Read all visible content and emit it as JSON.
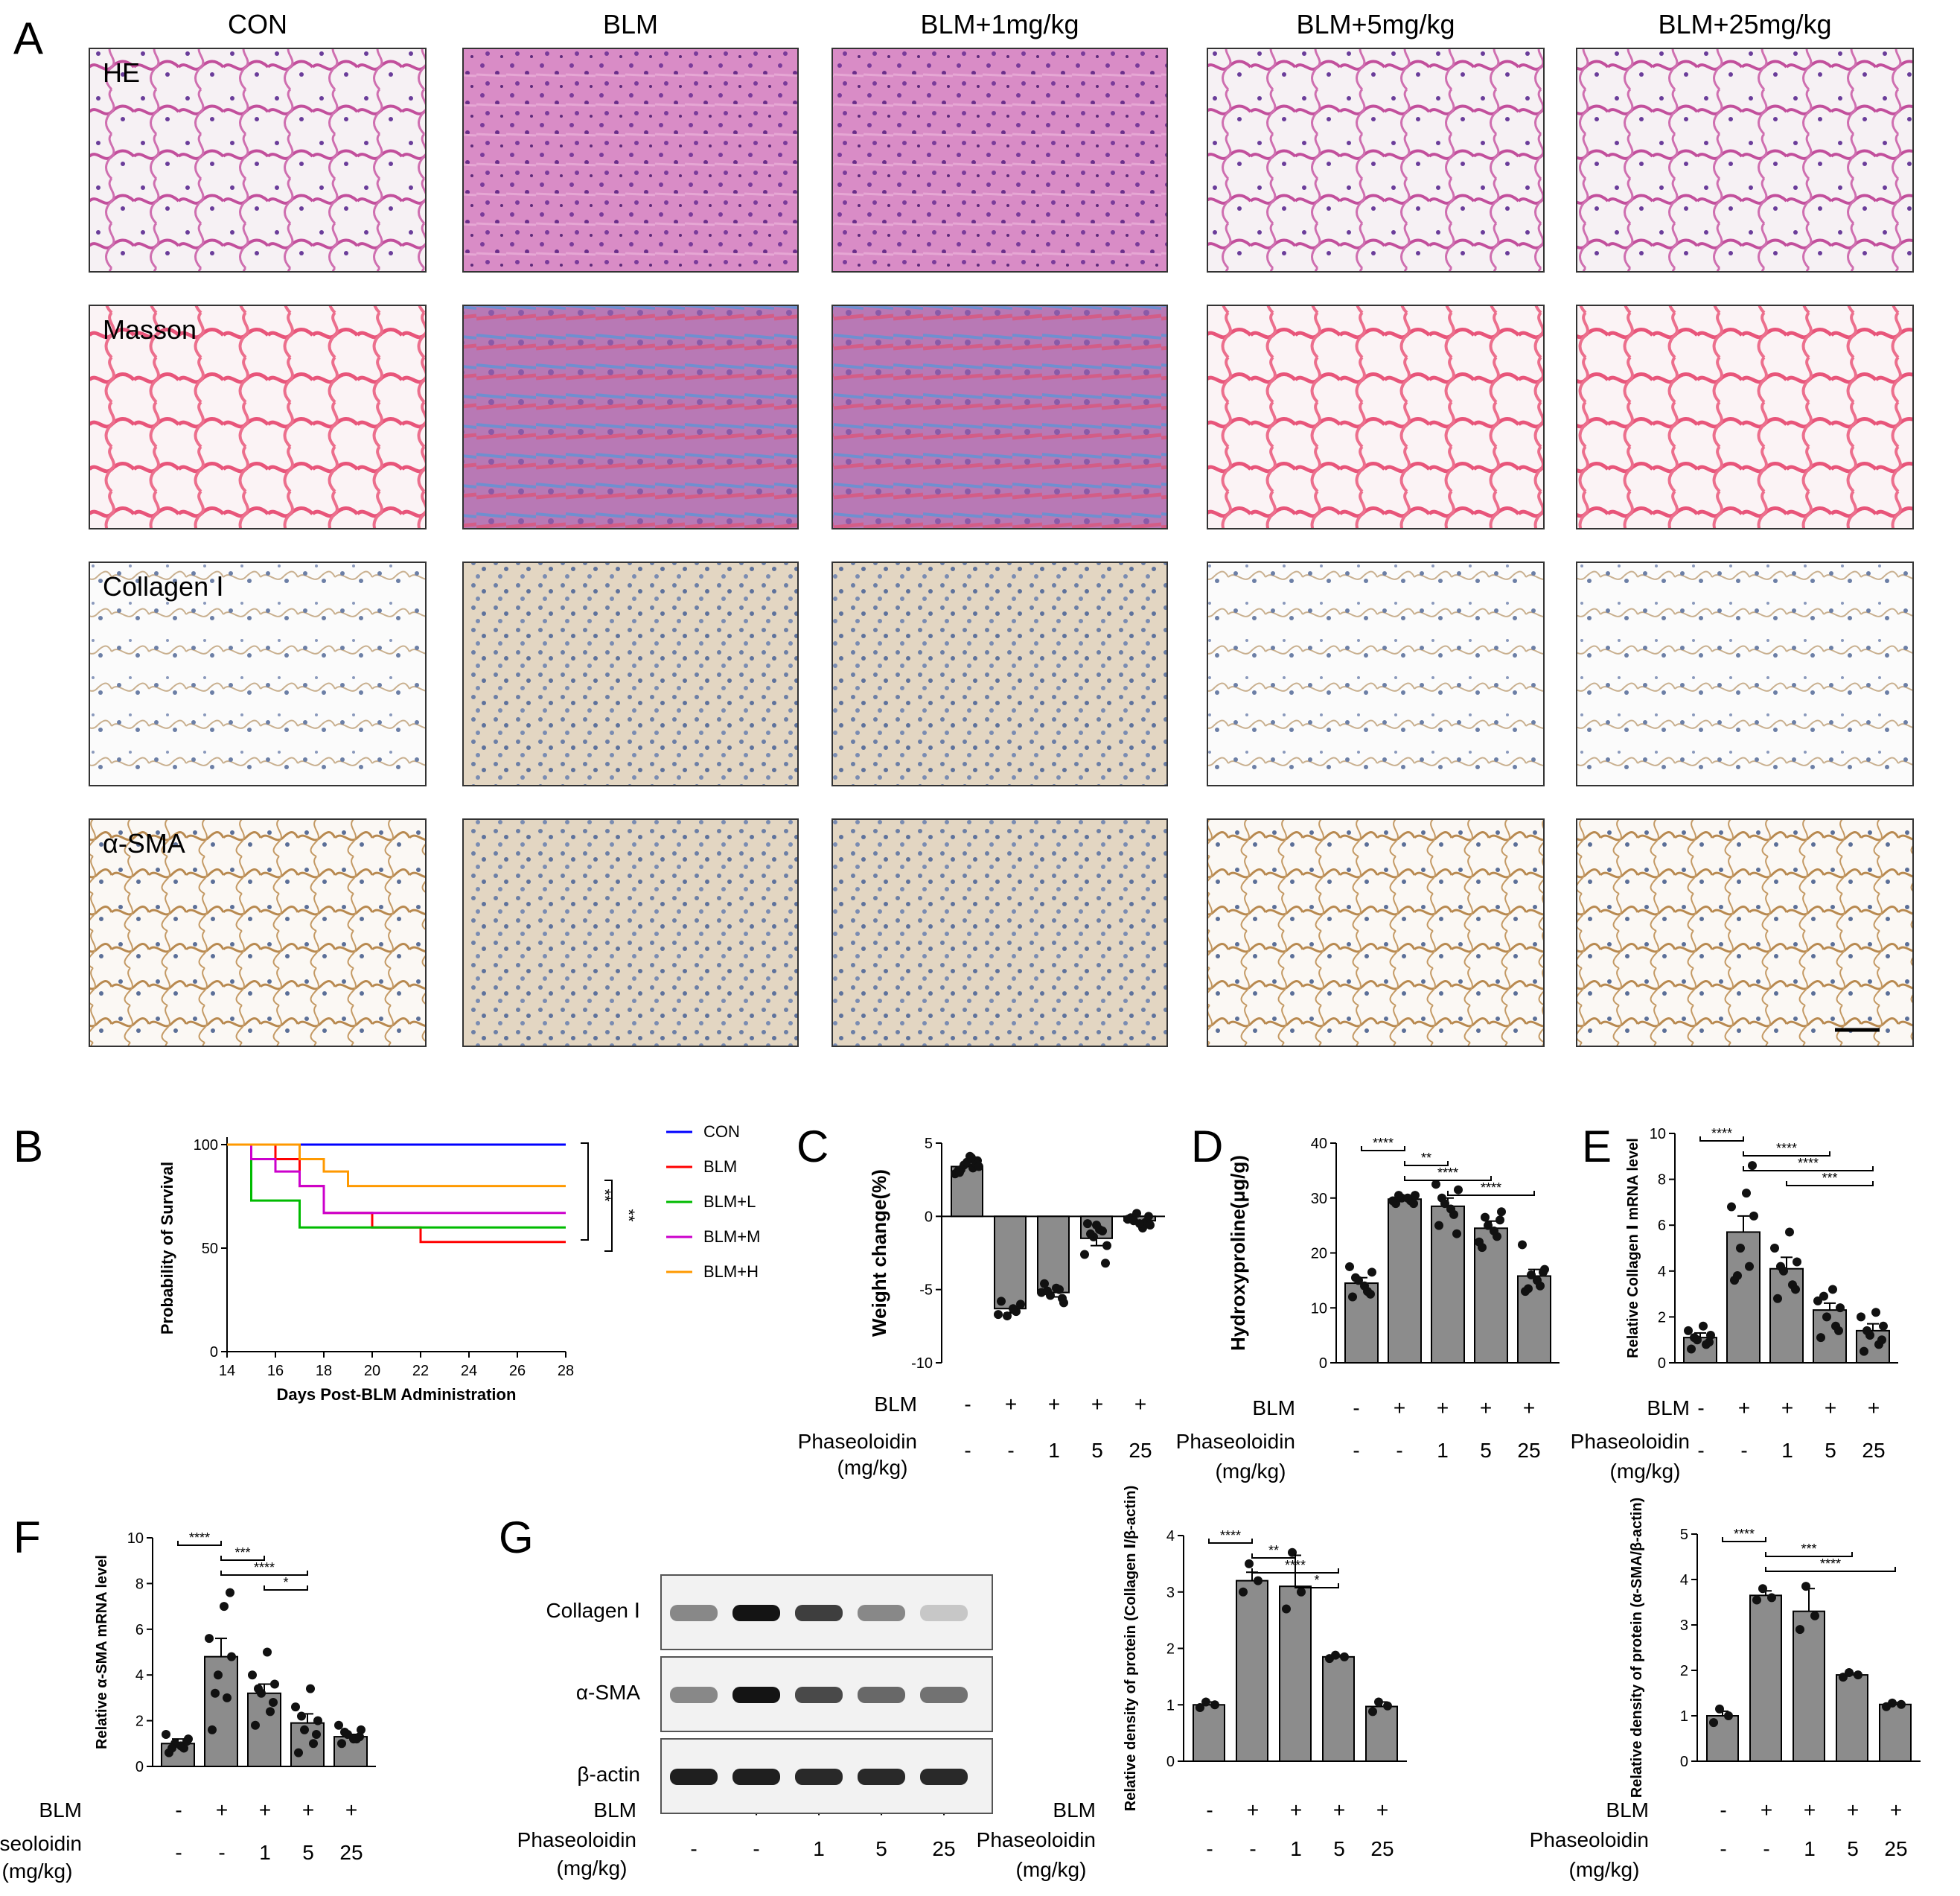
{
  "panel_letters": [
    "A",
    "B",
    "C",
    "D",
    "E",
    "F",
    "G"
  ],
  "panel_a": {
    "columns": [
      "CON",
      "BLM",
      "BLM+1mg/kg",
      "BLM+5mg/kg",
      "BLM+25mg/kg"
    ],
    "rows": [
      "HE",
      "Masson",
      "Collagen Ⅰ",
      "α-SMA"
    ],
    "scale_bar": true
  },
  "groups": {
    "blm_label": "BLM",
    "phaseoloidin_label": "Phaseoloidin",
    "unit_label": "(mg/kg)",
    "blm_signs": [
      "-",
      "+",
      "+",
      "+",
      "+"
    ],
    "doses": [
      "-",
      "-",
      "1",
      "5",
      "25"
    ]
  },
  "colors": {
    "bar_fill": "#8c8c8c",
    "CON": "#0000ff",
    "BLM": "#ff0000",
    "BLM+L": "#00bb00",
    "BLM+M": "#cc00cc",
    "BLM+H": "#ff9900"
  },
  "chart_data": [
    {
      "panel": "B",
      "type": "line",
      "step": true,
      "xlabel": "Days Post-BLM Administration",
      "ylabel": "Probability of Survival",
      "xlim": [
        14,
        28
      ],
      "ylim": [
        0,
        100
      ],
      "xticks": [
        14,
        16,
        18,
        20,
        22,
        24,
        26,
        28
      ],
      "yticks": [
        0,
        50,
        100
      ],
      "legend": "right",
      "series": [
        {
          "name": "CON",
          "points": [
            [
              14,
              100
            ],
            [
              28,
              100
            ]
          ]
        },
        {
          "name": "BLM",
          "points": [
            [
              14,
              100
            ],
            [
              16,
              100
            ],
            [
              16,
              93
            ],
            [
              17,
              93
            ],
            [
              17,
              80
            ],
            [
              18,
              80
            ],
            [
              18,
              67
            ],
            [
              20,
              67
            ],
            [
              20,
              60
            ],
            [
              22,
              60
            ],
            [
              22,
              53
            ],
            [
              28,
              53
            ]
          ]
        },
        {
          "name": "BLM+L",
          "points": [
            [
              14,
              100
            ],
            [
              15,
              100
            ],
            [
              15,
              73
            ],
            [
              17,
              73
            ],
            [
              17,
              60
            ],
            [
              28,
              60
            ]
          ]
        },
        {
          "name": "BLM+M",
          "points": [
            [
              14,
              100
            ],
            [
              15,
              100
            ],
            [
              15,
              93
            ],
            [
              16,
              93
            ],
            [
              16,
              87
            ],
            [
              17,
              87
            ],
            [
              17,
              80
            ],
            [
              18,
              80
            ],
            [
              18,
              67
            ],
            [
              28,
              67
            ]
          ]
        },
        {
          "name": "BLM+H",
          "points": [
            [
              14,
              100
            ],
            [
              17,
              100
            ],
            [
              17,
              93
            ],
            [
              18,
              93
            ],
            [
              18,
              87
            ],
            [
              19,
              87
            ],
            [
              19,
              80
            ],
            [
              28,
              80
            ]
          ]
        }
      ],
      "annotations": [
        "**",
        "**"
      ]
    },
    {
      "panel": "C",
      "type": "bar",
      "ylabel": "Weight change(%)",
      "ylim": [
        -10,
        5
      ],
      "yticks": [
        -10,
        -5,
        0,
        5
      ],
      "values": [
        3.4,
        -6.3,
        -5.2,
        -1.5,
        -0.3
      ],
      "errors": [
        0.3,
        0.3,
        0.3,
        0.5,
        0.2
      ],
      "points": [
        [
          3.1,
          3.3,
          3.5,
          3.8,
          2.9,
          4.1,
          3.6,
          3.2,
          3.7,
          3.4,
          3.0,
          4.0
        ],
        [
          -5.8,
          -6.5,
          -6.8,
          -6.0,
          -6.7,
          -6.3
        ],
        [
          -4.6,
          -5.0,
          -5.4,
          -5.9,
          -5.2,
          -4.9,
          -5.6,
          -5.1
        ],
        [
          -0.5,
          -1.0,
          -1.4,
          -2.0,
          -2.6,
          -0.9,
          -3.2,
          -1.2,
          -0.6
        ],
        [
          -0.1,
          -0.4,
          0.2,
          -0.6,
          -0.2,
          -0.8,
          0.0,
          -0.3,
          -0.5
        ]
      ]
    },
    {
      "panel": "D",
      "type": "bar",
      "ylabel": "Hydroxyproline(μg/g)",
      "ylim": [
        0,
        40
      ],
      "yticks": [
        0,
        10,
        20,
        30,
        40
      ],
      "values": [
        14.5,
        29.8,
        28.5,
        24.5,
        15.8
      ],
      "errors": [
        1.0,
        0.4,
        1.5,
        1.3,
        1.2
      ],
      "points": [
        [
          12,
          13,
          15,
          16.5,
          17.5,
          14,
          12.5,
          15.5
        ],
        [
          29,
          29.5,
          30,
          30.5,
          29.5,
          30,
          29,
          30.5
        ],
        [
          25,
          27,
          29,
          31.5,
          32.5,
          28,
          23.5,
          30
        ],
        [
          21,
          23,
          25,
          27.5,
          22,
          24,
          26,
          26.5
        ],
        [
          13,
          14,
          16,
          17,
          21.5,
          15,
          16.5,
          13.5
        ]
      ],
      "significance": [
        {
          "from": 0,
          "to": 1,
          "label": "****"
        },
        {
          "from": 1,
          "to": 2,
          "label": "**"
        },
        {
          "from": 1,
          "to": 3,
          "label": "****"
        },
        {
          "from": 2,
          "to": 4,
          "label": "****"
        }
      ]
    },
    {
      "panel": "E",
      "type": "bar",
      "ylabel": "Relative Collagen Ⅰ mRNA level",
      "ylim": [
        0,
        10
      ],
      "yticks": [
        0,
        2,
        4,
        6,
        8,
        10
      ],
      "values": [
        1.1,
        5.7,
        4.1,
        2.3,
        1.4
      ],
      "errors": [
        0.2,
        0.7,
        0.5,
        0.3,
        0.3
      ],
      "points": [
        [
          0.6,
          0.8,
          1.0,
          1.2,
          1.4,
          1.6,
          0.9,
          1.1
        ],
        [
          3.6,
          4.2,
          5.0,
          6.4,
          6.8,
          7.4,
          8.6,
          3.8
        ],
        [
          2.8,
          3.4,
          4.0,
          4.4,
          5.0,
          5.7,
          3.2,
          4.2
        ],
        [
          1.1,
          1.6,
          2.0,
          2.4,
          2.7,
          3.2,
          1.4,
          2.9
        ],
        [
          0.5,
          0.8,
          1.2,
          1.6,
          2.0,
          2.2,
          1.0,
          1.4
        ]
      ],
      "significance": [
        {
          "from": 0,
          "to": 1,
          "label": "****"
        },
        {
          "from": 1,
          "to": 3,
          "label": "****"
        },
        {
          "from": 1,
          "to": 4,
          "label": "****"
        },
        {
          "from": 2,
          "to": 4,
          "label": "***"
        }
      ]
    },
    {
      "panel": "F",
      "type": "bar",
      "ylabel": "Relative α-SMA mRNA level",
      "ylim": [
        0,
        10
      ],
      "yticks": [
        0,
        2,
        4,
        6,
        8,
        10
      ],
      "values": [
        1.0,
        4.8,
        3.2,
        1.9,
        1.3
      ],
      "errors": [
        0.2,
        0.8,
        0.4,
        0.4,
        0.1
      ],
      "points": [
        [
          0.6,
          0.8,
          1.0,
          1.2,
          1.4,
          0.9,
          1.1,
          0.8
        ],
        [
          1.6,
          3.0,
          4.0,
          4.8,
          5.6,
          7.0,
          7.6,
          3.2
        ],
        [
          1.8,
          2.4,
          3.2,
          3.6,
          4.0,
          5.0,
          2.8,
          3.4
        ],
        [
          0.6,
          1.0,
          1.6,
          2.0,
          2.6,
          3.4,
          1.4,
          2.2
        ],
        [
          1.0,
          1.2,
          1.4,
          1.6,
          1.8,
          1.2,
          1.3,
          1.5
        ]
      ],
      "significance": [
        {
          "from": 0,
          "to": 1,
          "label": "****"
        },
        {
          "from": 1,
          "to": 2,
          "label": "***"
        },
        {
          "from": 1,
          "to": 3,
          "label": "****"
        },
        {
          "from": 2,
          "to": 3,
          "label": "*"
        }
      ]
    },
    {
      "panel": "G-collagen",
      "type": "bar",
      "ylabel": "Relative density of protein (Collagen Ⅰ/β-actin)",
      "ylim": [
        0,
        4
      ],
      "yticks": [
        0,
        1,
        2,
        3,
        4
      ],
      "values": [
        1.0,
        3.2,
        3.1,
        1.85,
        0.97
      ],
      "errors": [
        0.05,
        0.15,
        0.55,
        0.03,
        0.08
      ],
      "points": [
        [
          0.95,
          1.0,
          1.05
        ],
        [
          3.0,
          3.2,
          3.5
        ],
        [
          2.7,
          3.0,
          3.7
        ],
        [
          1.82,
          1.85,
          1.88
        ],
        [
          0.88,
          0.98,
          1.05
        ]
      ],
      "significance": [
        {
          "from": 0,
          "to": 1,
          "label": "****"
        },
        {
          "from": 1,
          "to": 2,
          "label": "**"
        },
        {
          "from": 1,
          "to": 3,
          "label": "****"
        },
        {
          "from": 2,
          "to": 3,
          "label": "*"
        }
      ]
    },
    {
      "panel": "G-asma",
      "type": "bar",
      "ylabel": "Relative density of protein (α-SMA/β-actin)",
      "ylim": [
        0,
        5
      ],
      "yticks": [
        0,
        1,
        2,
        3,
        4,
        5
      ],
      "values": [
        1.0,
        3.65,
        3.3,
        1.9,
        1.25
      ],
      "errors": [
        0.1,
        0.1,
        0.5,
        0.04,
        0.04
      ],
      "points": [
        [
          0.85,
          1.0,
          1.15
        ],
        [
          3.55,
          3.6,
          3.8
        ],
        [
          2.9,
          3.2,
          3.85
        ],
        [
          1.85,
          1.9,
          1.95
        ],
        [
          1.2,
          1.25,
          1.28
        ]
      ],
      "significance": [
        {
          "from": 0,
          "to": 1,
          "label": "****"
        },
        {
          "from": 1,
          "to": 3,
          "label": "***"
        },
        {
          "from": 1,
          "to": 4,
          "label": "****"
        }
      ]
    }
  ],
  "blot": {
    "rows": [
      "Collagen Ⅰ",
      "α-SMA",
      "β-actin"
    ],
    "intensities": [
      [
        0.45,
        1.0,
        0.8,
        0.45,
        0.15
      ],
      [
        0.45,
        1.0,
        0.75,
        0.6,
        0.55
      ],
      [
        0.95,
        0.95,
        0.9,
        0.9,
        0.9
      ]
    ]
  }
}
